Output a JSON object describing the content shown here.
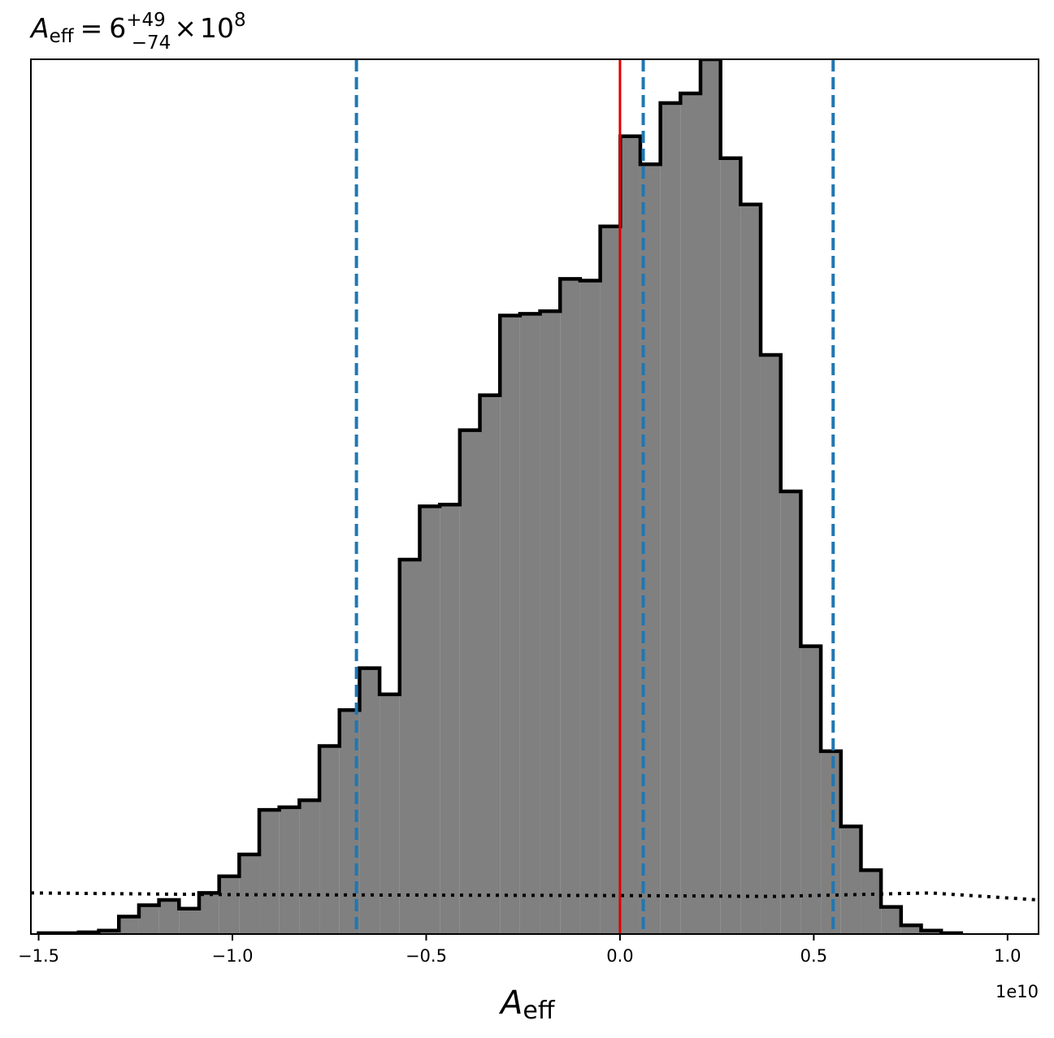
{
  "chart_data": {
    "type": "histogram",
    "title": {
      "symbol": "A",
      "subscript": "eff",
      "equals": "=",
      "value": "6",
      "sup": "+49",
      "sub": "−74",
      "times": "×",
      "base": "10",
      "exponent": "8"
    },
    "xlabel": {
      "symbol": "A",
      "subscript": "eff"
    },
    "x_offset_label": "1e10",
    "xlim": [
      -1.52,
      1.08
    ],
    "ylim": [
      0,
      1.0
    ],
    "x_ticks": [
      -1.5,
      -1.0,
      -0.5,
      0.0,
      0.5,
      1.0
    ],
    "x_tick_labels": [
      "−1.5",
      "−1.0",
      "−0.5",
      "0.0",
      "0.5",
      "1.0"
    ],
    "y_ticks_shown": false,
    "grid": false,
    "histogram": {
      "bin_start": -1.5,
      "bin_width": 0.05175,
      "heights": [
        0.001,
        0.001,
        0.002,
        0.004,
        0.02,
        0.033,
        0.039,
        0.029,
        0.047,
        0.066,
        0.091,
        0.142,
        0.145,
        0.153,
        0.215,
        0.256,
        0.304,
        0.274,
        0.428,
        0.489,
        0.491,
        0.576,
        0.616,
        0.707,
        0.709,
        0.712,
        0.749,
        0.747,
        0.809,
        0.912,
        0.88,
        0.95,
        0.961,
        1.0,
        0.887,
        0.834,
        0.662,
        0.506,
        0.329,
        0.209,
        0.123,
        0.073,
        0.031,
        0.01,
        0.004,
        0.001
      ],
      "fill_color": "#808080",
      "edge_color": "#000000"
    },
    "vertical_lines": [
      {
        "x": 0.0,
        "style": "solid",
        "color": "#e00000"
      },
      {
        "x": -0.68,
        "style": "dashed",
        "color": "#1f77b4"
      },
      {
        "x": 0.06,
        "style": "dashed",
        "color": "#1f77b4"
      },
      {
        "x": 0.55,
        "style": "dashed",
        "color": "#1f77b4"
      }
    ],
    "prior_line": {
      "style": "dotted",
      "color": "#000000",
      "x": [
        -1.52,
        -1.0,
        0.0,
        0.4,
        0.8,
        1.08
      ],
      "y": [
        0.047,
        0.045,
        0.044,
        0.043,
        0.047,
        0.039
      ]
    }
  }
}
